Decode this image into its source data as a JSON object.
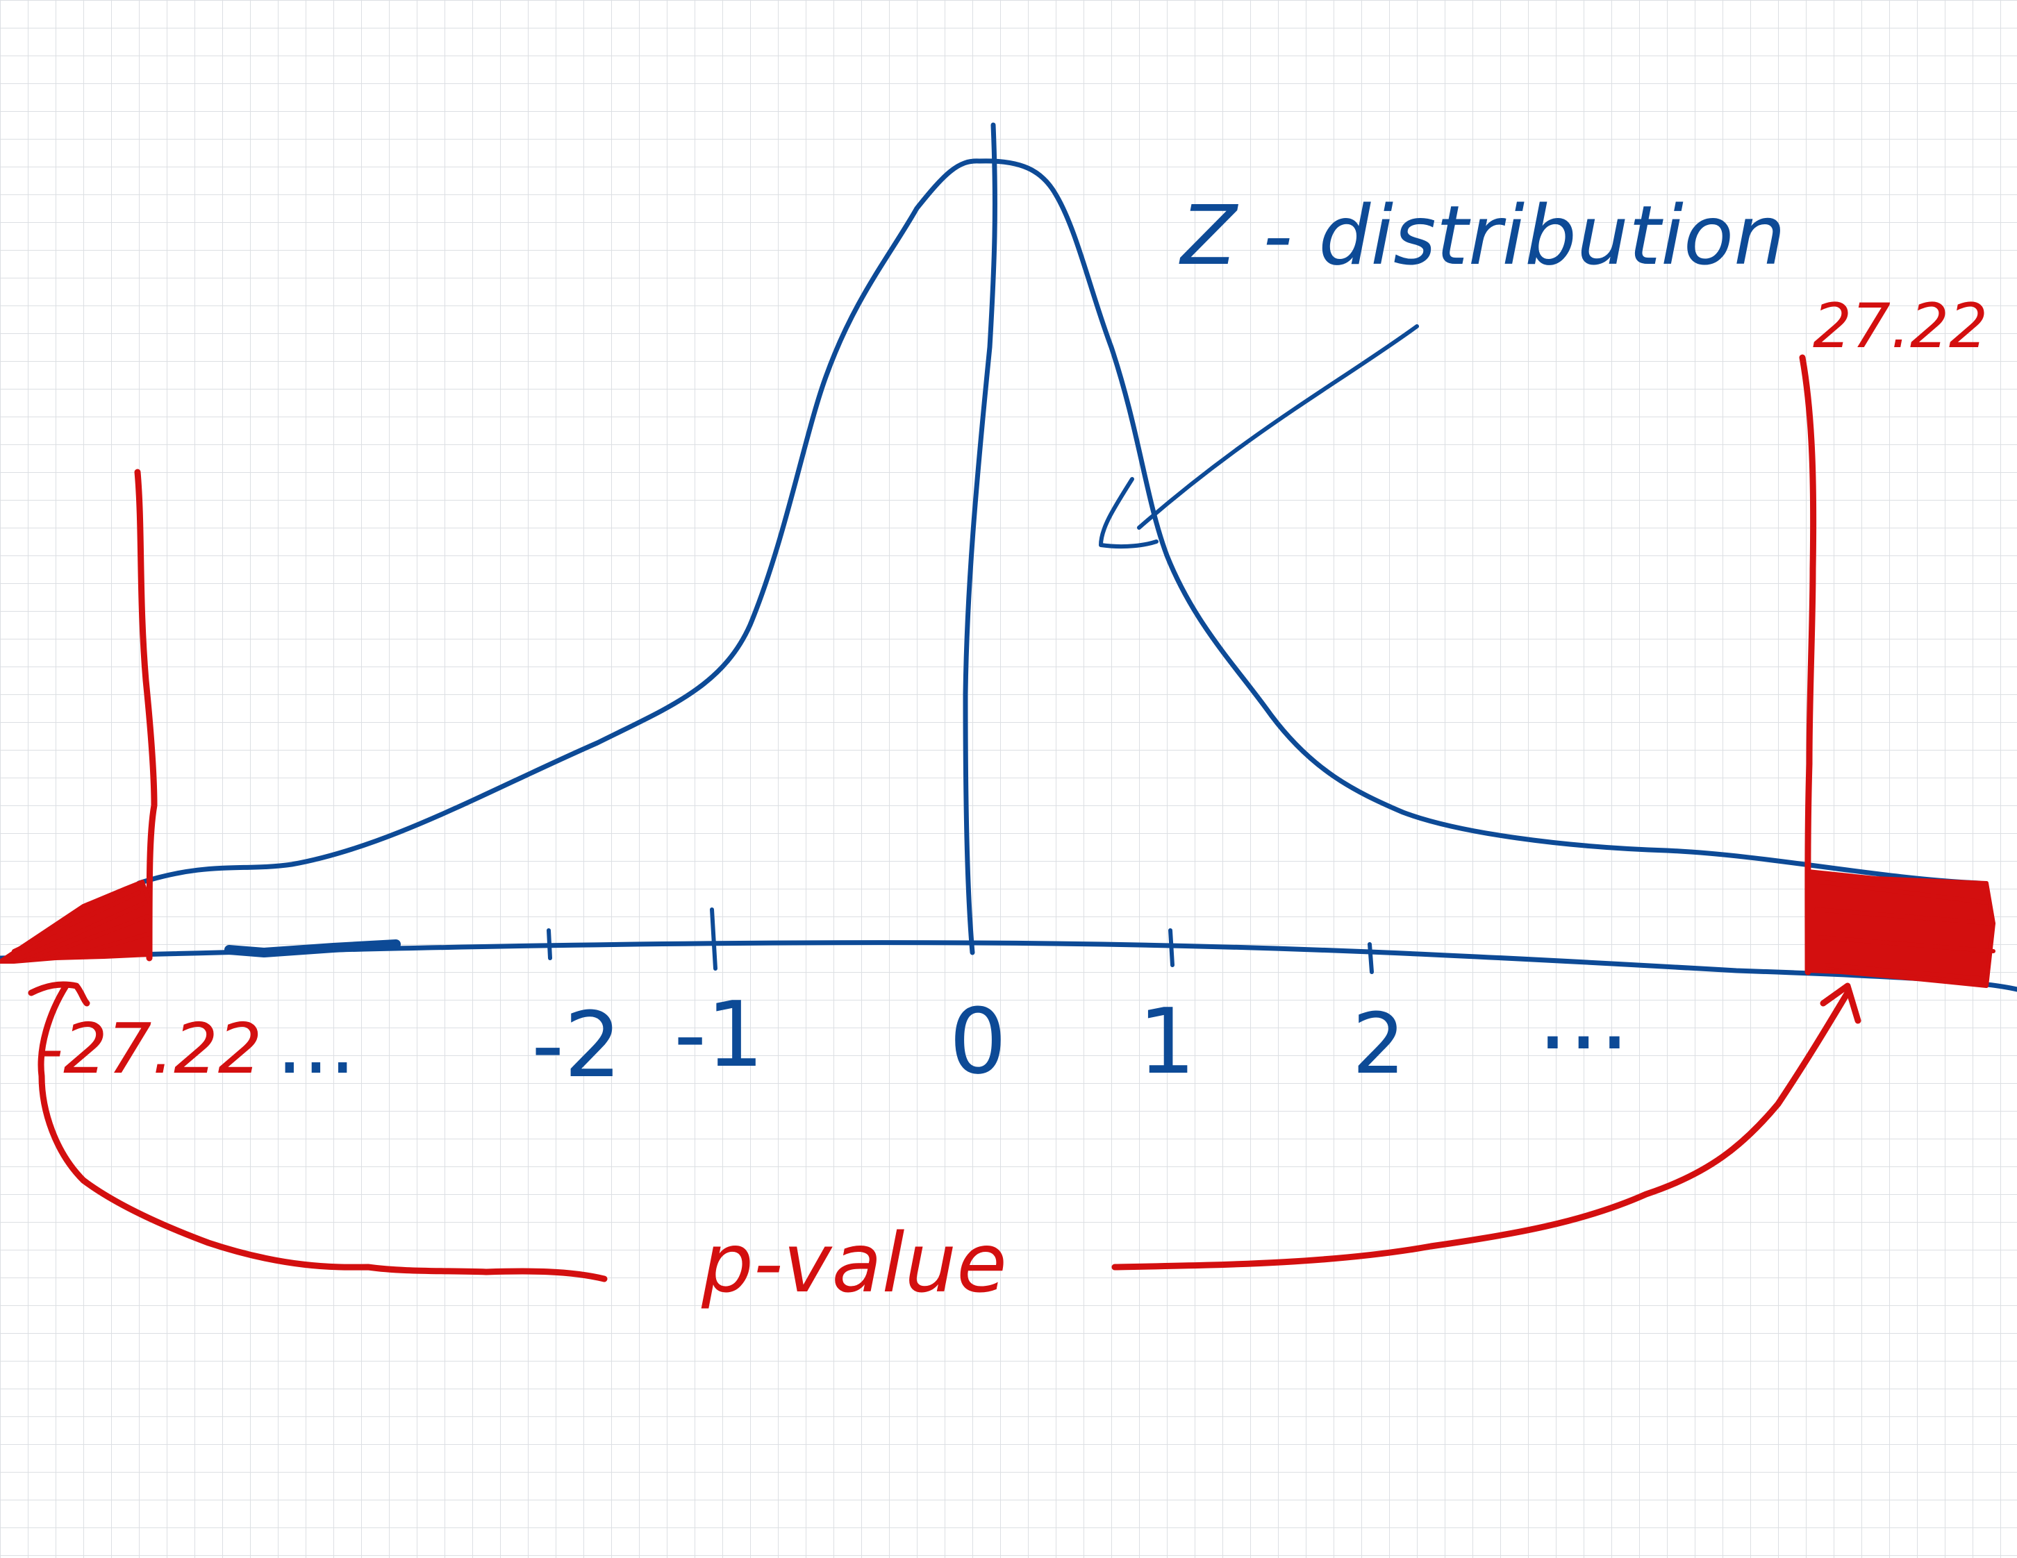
{
  "colors": {
    "paper": "#ffffff",
    "grid": "#dcdfe3",
    "ink_blue": "#0d4a96",
    "ink_red": "#d30f0f"
  },
  "curve_label": "Z - distribution",
  "axis": {
    "ticks": [
      {
        "id": "dots-left",
        "label": "..."
      },
      {
        "id": "neg2",
        "label": "-2"
      },
      {
        "id": "neg1",
        "label": "-1"
      },
      {
        "id": "zero",
        "label": "0"
      },
      {
        "id": "pos1",
        "label": "1"
      },
      {
        "id": "pos2",
        "label": "2"
      },
      {
        "id": "dots-right",
        "label": "..."
      }
    ]
  },
  "critical_values": {
    "left": "-27.22",
    "right": "27.22"
  },
  "p_value_label": "p-value"
}
